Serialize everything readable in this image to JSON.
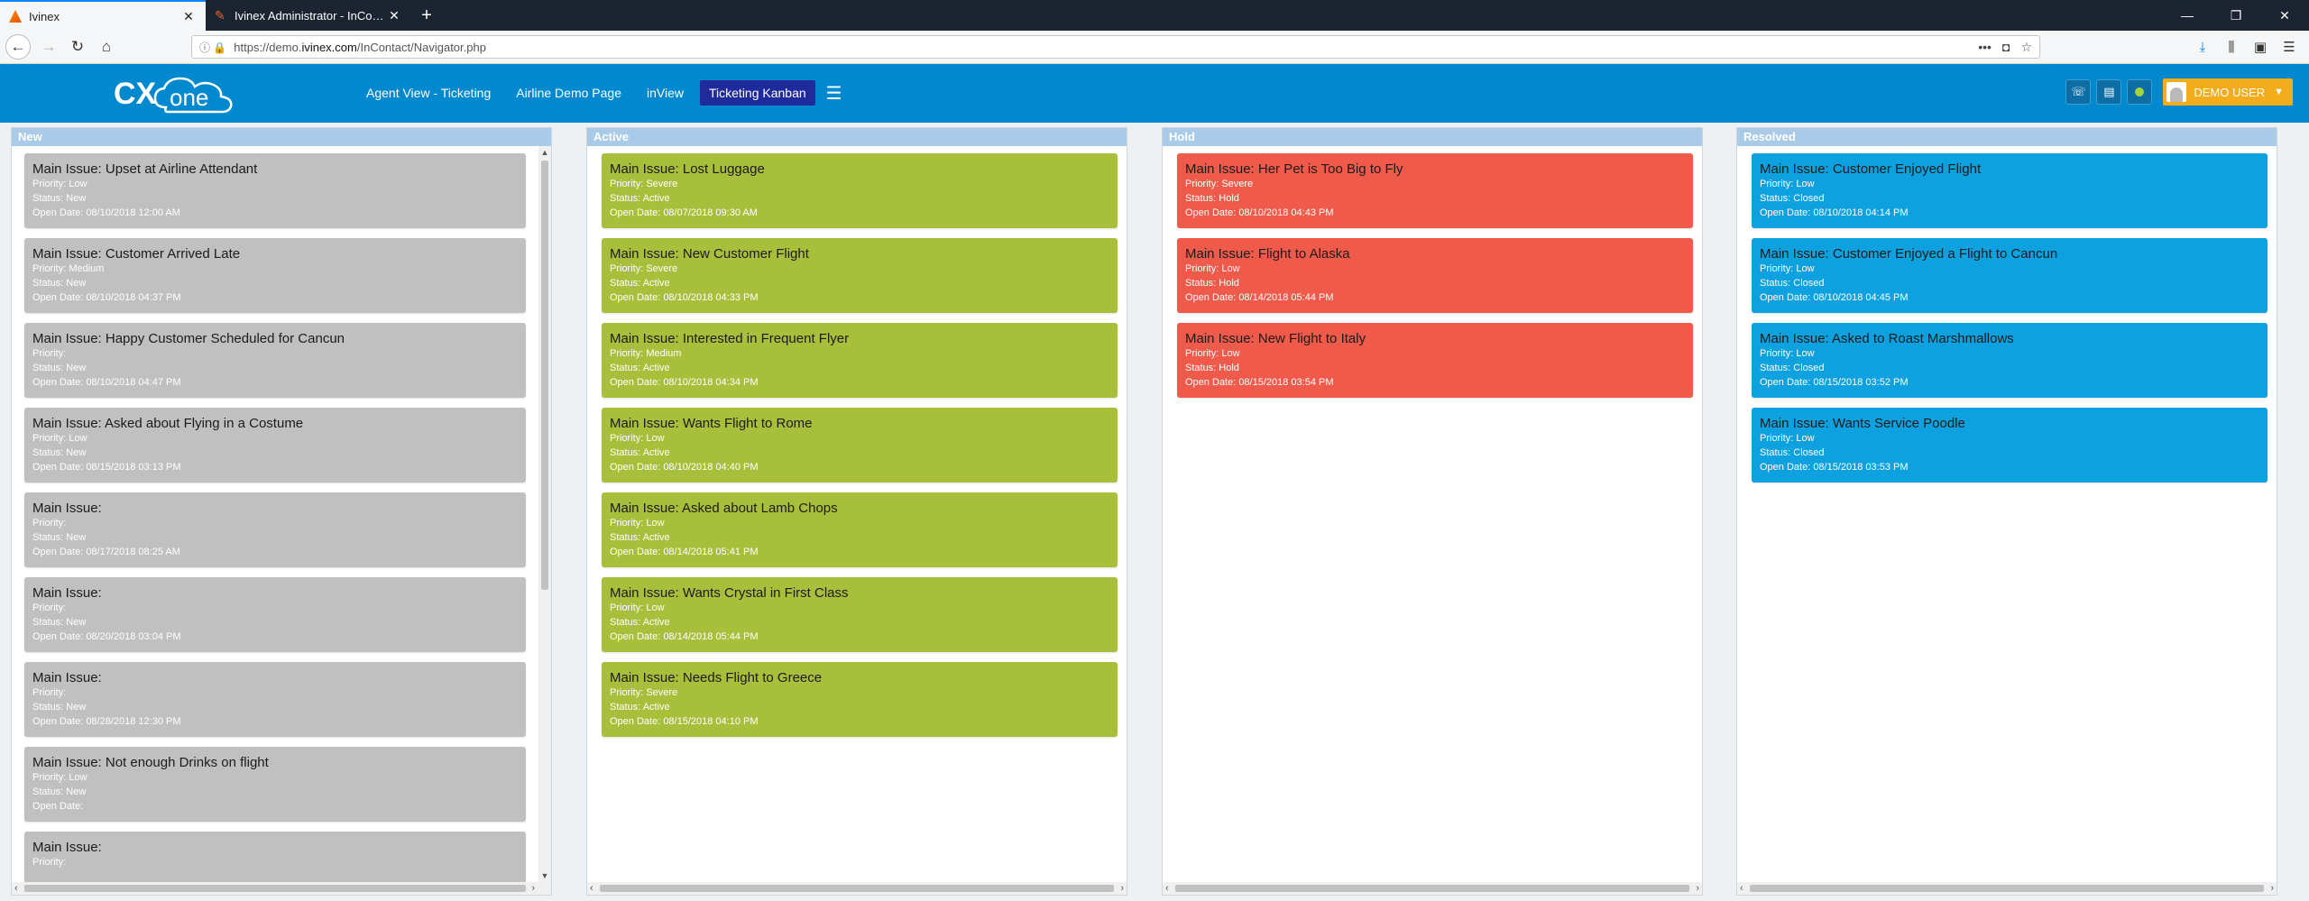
{
  "browser": {
    "tabs": [
      {
        "title": "Ivinex",
        "icon": "firefox-tab-icon"
      },
      {
        "title": "Ivinex Administrator - InContact",
        "icon": "feather-tab-icon"
      }
    ],
    "url": {
      "prefix": "https://demo.",
      "host": "ivinex.com",
      "path": "/InContact/Navigator.php"
    }
  },
  "header": {
    "logo": "CXone",
    "nav": [
      "Agent View - Ticketing",
      "Airline Demo Page",
      "inView",
      "Ticketing Kanban"
    ],
    "active_nav": "Ticketing Kanban",
    "user": "DEMO USER"
  },
  "columns": [
    {
      "title": "New",
      "color": "#c0c0c0",
      "cards": [
        {
          "main": "Main Issue: Upset at Airline Attendant",
          "priority": "Priority: Low",
          "status": "Status: New",
          "open": "Open Date: 08/10/2018 12:00 AM"
        },
        {
          "main": "Main Issue: Customer Arrived Late",
          "priority": "Priority: Medium",
          "status": "Status: New",
          "open": "Open Date: 08/10/2018 04:37 PM"
        },
        {
          "main": "Main Issue: Happy Customer Scheduled for Cancun",
          "priority": "Priority:",
          "status": "Status: New",
          "open": "Open Date: 08/10/2018 04:47 PM"
        },
        {
          "main": "Main Issue: Asked about Flying in a Costume",
          "priority": "Priority: Low",
          "status": "Status: New",
          "open": "Open Date: 08/15/2018 03:13 PM"
        },
        {
          "main": "Main Issue:",
          "priority": "Priority:",
          "status": "Status: New",
          "open": "Open Date: 08/17/2018 08:25 AM"
        },
        {
          "main": "Main Issue:",
          "priority": "Priority:",
          "status": "Status: New",
          "open": "Open Date: 08/20/2018 03:04 PM"
        },
        {
          "main": "Main Issue:",
          "priority": "Priority:",
          "status": "Status: New",
          "open": "Open Date: 08/28/2018 12:30 PM"
        },
        {
          "main": "Main Issue: Not enough Drinks on flight",
          "priority": "Priority: Low",
          "status": "Status: New",
          "open": "Open Date:"
        },
        {
          "main": "Main Issue:",
          "priority": "Priority:",
          "status": "",
          "open": ""
        }
      ]
    },
    {
      "title": "Active",
      "color": "#a8bf3c",
      "cards": [
        {
          "main": "Main Issue: Lost Luggage",
          "priority": "Priority: Severe",
          "status": "Status: Active",
          "open": "Open Date: 08/07/2018 09:30 AM"
        },
        {
          "main": "Main Issue: New Customer Flight",
          "priority": "Priority: Severe",
          "status": "Status: Active",
          "open": "Open Date: 08/10/2018 04:33 PM"
        },
        {
          "main": "Main Issue: Interested in Frequent Flyer",
          "priority": "Priority: Medium",
          "status": "Status: Active",
          "open": "Open Date: 08/10/2018 04:34 PM"
        },
        {
          "main": "Main Issue: Wants Flight to Rome",
          "priority": "Priority: Low",
          "status": "Status: Active",
          "open": "Open Date: 08/10/2018 04:40 PM"
        },
        {
          "main": "Main Issue: Asked about Lamb Chops",
          "priority": "Priority: Low",
          "status": "Status: Active",
          "open": "Open Date: 08/14/2018 05:41 PM"
        },
        {
          "main": "Main Issue: Wants Crystal in First Class",
          "priority": "Priority: Low",
          "status": "Status: Active",
          "open": "Open Date: 08/14/2018 05:44 PM"
        },
        {
          "main": "Main Issue: Needs Flight to Greece",
          "priority": "Priority: Severe",
          "status": "Status: Active",
          "open": "Open Date: 08/15/2018 04:10 PM"
        }
      ]
    },
    {
      "title": "Hold",
      "color": "#f05a4a",
      "cards": [
        {
          "main": "Main Issue: Her Pet is Too Big to Fly",
          "priority": "Priority: Severe",
          "status": "Status: Hold",
          "open": "Open Date: 08/10/2018 04:43 PM"
        },
        {
          "main": "Main Issue: Flight to Alaska",
          "priority": "Priority: Low",
          "status": "Status: Hold",
          "open": "Open Date: 08/14/2018 05:44 PM"
        },
        {
          "main": "Main Issue: New Flight to Italy",
          "priority": "Priority: Low",
          "status": "Status: Hold",
          "open": "Open Date: 08/15/2018 03:54 PM"
        }
      ]
    },
    {
      "title": "Resolved",
      "color": "#0ea1df",
      "cards": [
        {
          "main": "Main Issue: Customer Enjoyed Flight",
          "priority": "Priority: Low",
          "status": "Status: Closed",
          "open": "Open Date: 08/10/2018 04:14 PM"
        },
        {
          "main": "Main Issue: Customer Enjoyed a Flight to Cancun",
          "priority": "Priority: Low",
          "status": "Status: Closed",
          "open": "Open Date: 08/10/2018 04:45 PM"
        },
        {
          "main": "Main Issue: Asked to Roast Marshmallows",
          "priority": "Priority: Low",
          "status": "Status: Closed",
          "open": "Open Date: 08/15/2018 03:52 PM"
        },
        {
          "main": "Main Issue: Wants Service Poodle",
          "priority": "Priority: Low",
          "status": "Status: Closed",
          "open": "Open Date: 08/15/2018 03:53 PM"
        }
      ]
    }
  ]
}
